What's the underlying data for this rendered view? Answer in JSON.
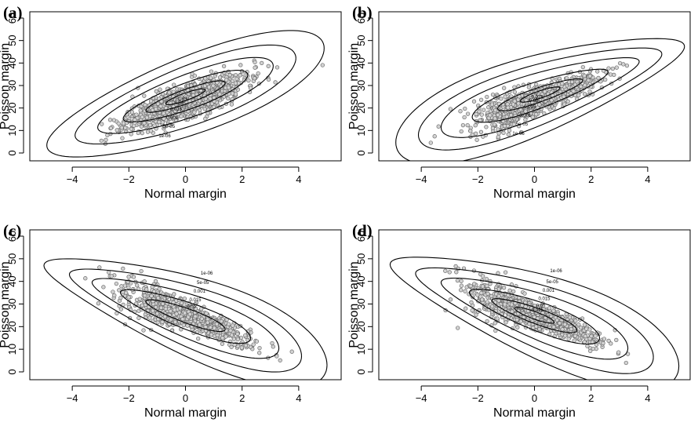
{
  "chart_data": [
    {
      "type": "scatter",
      "panel": "(a)",
      "xlabel": "Normal margin",
      "ylabel": "Poisson margin",
      "xlim": [
        -5.5,
        5.5
      ],
      "ylim": [
        0,
        60
      ],
      "xticks": [
        -4,
        -2,
        0,
        2,
        4
      ],
      "yticks": [
        0,
        10,
        20,
        30,
        40,
        50,
        60
      ],
      "grid": false,
      "contour_levels": [
        "1e-06",
        "5e-05",
        "0.001",
        "0.015",
        "0.05",
        "0.03"
      ],
      "dependence": "positive"
    },
    {
      "type": "scatter",
      "panel": "(b)",
      "xlabel": "Normal margin",
      "ylabel": "Poisson margin",
      "xlim": [
        -5.5,
        5.5
      ],
      "ylim": [
        0,
        60
      ],
      "xticks": [
        -4,
        -2,
        0,
        2,
        4
      ],
      "yticks": [
        0,
        10,
        20,
        30,
        40,
        50,
        60
      ],
      "grid": false,
      "contour_levels": [
        "1e-06",
        "5e-05",
        "0.001",
        "0.015",
        "0.05",
        "0.075"
      ],
      "dependence": "positive-upper-tail"
    },
    {
      "type": "scatter",
      "panel": "(c)",
      "xlabel": "Normal margin",
      "ylabel": "Poisson margin",
      "xlim": [
        -5.5,
        5.5
      ],
      "ylim": [
        0,
        60
      ],
      "xticks": [
        -4,
        -2,
        0,
        2,
        4
      ],
      "yticks": [
        0,
        10,
        20,
        30,
        40,
        50,
        60
      ],
      "grid": false,
      "contour_levels": [
        "1e-06",
        "5e-05",
        "0.001",
        "0.015",
        "0.05"
      ],
      "dependence": "negative"
    },
    {
      "type": "scatter",
      "panel": "(d)",
      "xlabel": "Normal margin",
      "ylabel": "Poisson margin",
      "xlim": [
        -5.5,
        5.5
      ],
      "ylim": [
        0,
        60
      ],
      "xticks": [
        -4,
        -2,
        0,
        2,
        4
      ],
      "yticks": [
        0,
        10,
        20,
        30,
        40,
        50,
        60
      ],
      "grid": false,
      "contour_levels": [
        "1e-06",
        "5e-05",
        "0.001",
        "0.015",
        "0.05",
        "0.075"
      ],
      "dependence": "negative-tail"
    }
  ]
}
